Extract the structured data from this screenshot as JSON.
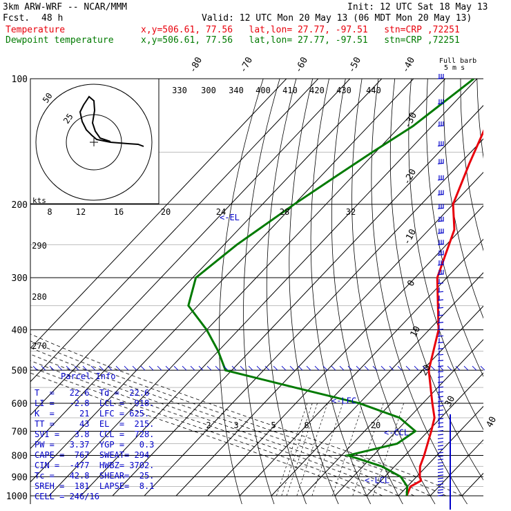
{
  "header": {
    "model": "3km ARW-WRF -- NCAR/MMM",
    "init": "Init: 12 UTC Sat 18 May 13",
    "fcst_label": "Fcst.",
    "fcst_value": "48 h",
    "valid": "Valid: 12 UTC Mon 20 May 13 (06 MDT Mon 20 May 13)",
    "temp_label": "Temperature",
    "temp_loc": "x,y=506.61, 77.56   lat,lon= 27.77, -97.51   stn=CRP ,72251",
    "dew_label": "Dewpoint temperature",
    "dew_loc": "x,y=506.61, 77.56   lat,lon= 27.77, -97.51   stn=CRP ,72251",
    "barb_title1": "Full barb",
    "barb_title2": "5 m s"
  },
  "colors": {
    "temperature": "#e8000b",
    "dewpoint": "#007a00",
    "annotation": "#0000c8",
    "grid": "#000000"
  },
  "parcel_info": {
    "title": "Parcel Info",
    "rows": [
      "T  =   22.6  Td =  22.6",
      "LI =   -2.8  LCL =  918.",
      "K  =     21  LFC = 625.",
      "TT =     43  EL  =  215.",
      "SVI =   3.8  CCL =  728.",
      "PW =   3.37  YGP =   0.3",
      "CAPE =  767  SWEAT= 294",
      "CIN =  -477  HWBZ= 3702.",
      "Tc =   42.8  SHEAR=  25.",
      "SREH =  181  LAPSE=  8.1",
      "CELL = 246/16"
    ]
  },
  "annotations": {
    "el": "<-EL",
    "lfc": "<-LFC",
    "ccl": "<-CCL",
    "lcl": "<-LCL"
  },
  "hodograph": {
    "ring_labels": [
      "25",
      "50"
    ],
    "speed_unit": "kts"
  },
  "chart_data": {
    "type": "line",
    "title": "",
    "ylabel": "",
    "pressure_levels": [
      100,
      200,
      300,
      400,
      500,
      600,
      700,
      800,
      900,
      1000
    ],
    "pressure_labels": [
      "100",
      "200",
      "300",
      "400",
      "500",
      "600",
      "700",
      "800",
      "900",
      "1000"
    ],
    "isotherm_labels": [
      "-80",
      "-70",
      "-60",
      "-50",
      "-40",
      "-30",
      "-20",
      "-10",
      "0",
      "10",
      "20",
      "30",
      "40"
    ],
    "theta_labels": [
      "330",
      "300",
      "340",
      "400",
      "410",
      "420",
      "430",
      "440"
    ],
    "theta_e_labels": [
      "290",
      "280",
      "270"
    ],
    "mixing_ratio_labels_upper": [
      "8",
      "12",
      "16",
      "20",
      "24",
      "28",
      "32"
    ],
    "mixing_ratio_labels_lower": [
      "2",
      "3",
      "5",
      "8",
      "20"
    ],
    "series": [
      {
        "name": "Temperature",
        "color": "#e8000b",
        "points": [
          [
            100,
            -75
          ],
          [
            115,
            -69
          ],
          [
            130,
            -63
          ],
          [
            160,
            -57
          ],
          [
            200,
            -50
          ],
          [
            230,
            -42
          ],
          [
            300,
            -33
          ],
          [
            400,
            -17
          ],
          [
            500,
            -8
          ],
          [
            600,
            3
          ],
          [
            650,
            8
          ],
          [
            700,
            11
          ],
          [
            800,
            16
          ],
          [
            850,
            18
          ],
          [
            900,
            21
          ],
          [
            920,
            22.6
          ],
          [
            950,
            21
          ],
          [
            1000,
            22.6
          ]
        ]
      },
      {
        "name": "Dewpoint temperature",
        "color": "#007a00",
        "points": [
          [
            100,
            -81
          ],
          [
            130,
            -86
          ],
          [
            150,
            -91
          ],
          [
            170,
            -95
          ],
          [
            200,
            -100
          ],
          [
            250,
            -106
          ],
          [
            300,
            -109
          ],
          [
            350,
            -103
          ],
          [
            400,
            -90
          ],
          [
            450,
            -80
          ],
          [
            500,
            -72
          ],
          [
            550,
            -45
          ],
          [
            600,
            -20
          ],
          [
            650,
            -3
          ],
          [
            700,
            6
          ],
          [
            750,
            4
          ],
          [
            800,
            -8
          ],
          [
            850,
            6
          ],
          [
            900,
            15
          ],
          [
            950,
            20
          ],
          [
            1000,
            22.6
          ]
        ]
      }
    ],
    "parcel_markers": {
      "el": 215,
      "lfc": 625,
      "ccl": 728,
      "lcl": 918
    }
  }
}
